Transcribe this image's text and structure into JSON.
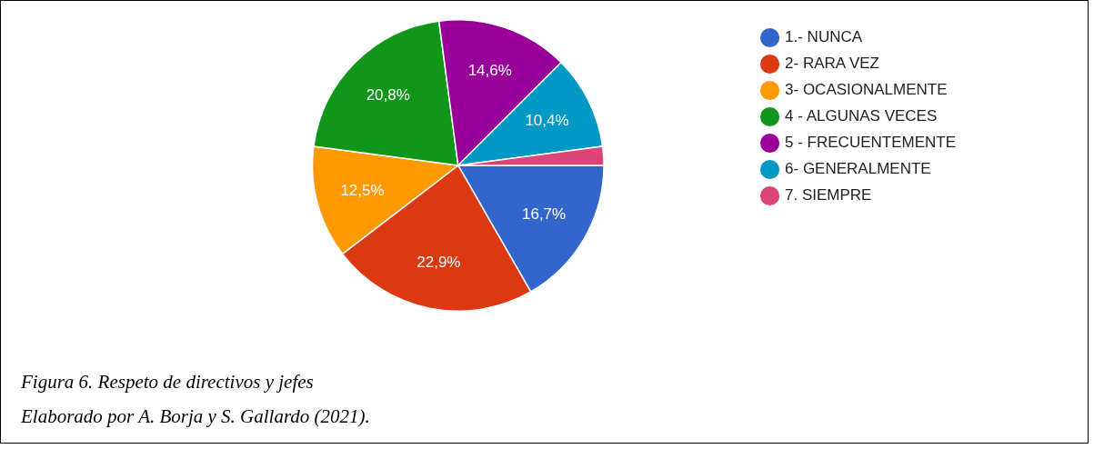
{
  "chart_data": {
    "type": "pie",
    "categories": [
      "1.- NUNCA",
      "2- RARA VEZ",
      "3- OCASIONALMENTE",
      "4 - ALGUNAS VECES",
      "5 - FRECUENTEMENTE",
      "6- GENERALMENTE",
      "7. SIEMPRE"
    ],
    "values": [
      16.7,
      22.9,
      12.5,
      20.8,
      14.6,
      10.4,
      2.1
    ],
    "colors": [
      "#3366cc",
      "#dc3912",
      "#ff9900",
      "#109618",
      "#990099",
      "#0099c6",
      "#dd4477"
    ],
    "value_labels": [
      "16,7%",
      "22,9%",
      "12,5%",
      "20,8%",
      "14,6%",
      "10,4%",
      null
    ],
    "legend": "top right",
    "annotations": [
      "Figura 6. Respeto de directivos y jefes",
      "Elaborado por A. Borja y S. Gallardo (2021)."
    ]
  }
}
